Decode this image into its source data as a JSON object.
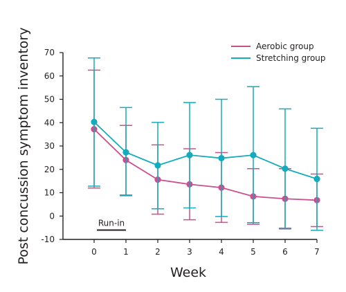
{
  "chart_data": {
    "type": "line",
    "title": "",
    "xlabel": "Week",
    "ylabel": "Post concussion symptom inventory",
    "x": [
      0,
      1,
      2,
      3,
      4,
      5,
      6,
      7
    ],
    "x_tick_labels": [
      "0",
      "1",
      "2",
      "3",
      "4",
      "5",
      "6",
      "7"
    ],
    "xlim": [
      -1,
      7
    ],
    "ylim": [
      -10,
      70
    ],
    "y_ticks": [
      -10,
      0,
      10,
      20,
      30,
      40,
      50,
      60,
      70
    ],
    "y_tick_labels": [
      "-10",
      "0",
      "10",
      "20",
      "30",
      "40",
      "50",
      "60",
      "70"
    ],
    "grid": false,
    "legend_position": "top-right",
    "series": [
      {
        "name": "Aerobic group",
        "color": "#cc4f8d",
        "values": [
          37.2,
          24.0,
          15.6,
          13.6,
          12.2,
          8.4,
          7.4,
          6.8
        ],
        "error_upper": [
          62.5,
          38.8,
          30.5,
          28.8,
          27.2,
          20.3,
          20.3,
          18.0
        ],
        "error_lower": [
          12.0,
          9.0,
          0.8,
          -1.6,
          -2.7,
          -3.5,
          -5.5,
          -4.5
        ]
      },
      {
        "name": "Stretching group",
        "color": "#13abbd",
        "values": [
          40.3,
          27.3,
          21.7,
          26.1,
          24.8,
          26.1,
          20.3,
          15.9
        ],
        "error_upper": [
          67.7,
          46.5,
          40.1,
          48.6,
          50.0,
          55.4,
          45.9,
          37.6
        ],
        "error_lower": [
          12.8,
          8.7,
          3.1,
          3.5,
          -0.2,
          -2.8,
          -5.2,
          -6.1
        ]
      }
    ],
    "annotations": [
      {
        "text": "Run-in",
        "x_start": 0,
        "x_end": 1,
        "y": -6
      }
    ]
  }
}
